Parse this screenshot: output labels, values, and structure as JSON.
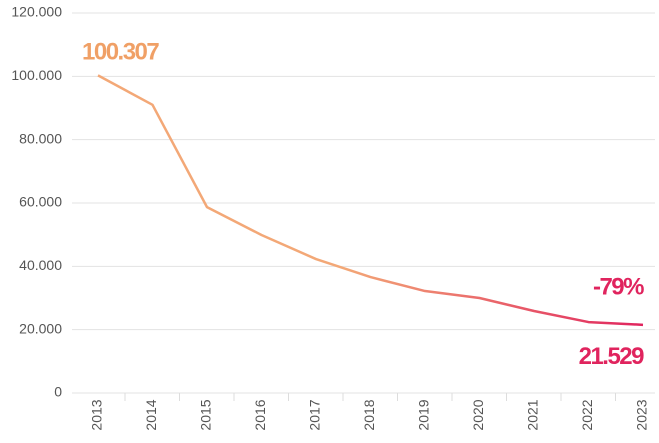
{
  "chart_data": {
    "type": "line",
    "categories": [
      "2013",
      "2014",
      "2015",
      "2016",
      "2017",
      "2018",
      "2019",
      "2020",
      "2021",
      "2022",
      "2023"
    ],
    "values": [
      100307,
      91000,
      58700,
      49900,
      42300,
      36600,
      32200,
      30000,
      25900,
      22400,
      21529
    ],
    "value_labels": [
      "100.307",
      null,
      null,
      null,
      null,
      null,
      null,
      null,
      null,
      null,
      "21.529"
    ],
    "value_label_colors": [
      "#f0a066",
      "#e0245e"
    ],
    "colors": [
      "#f3a877",
      "#e0245e"
    ],
    "annotations": [
      {
        "text": "-79%",
        "color": "#e0245e"
      }
    ],
    "ylim": [
      0,
      120000
    ],
    "yticks": [
      0,
      {
        "value": 20000,
        "label": "20.000"
      },
      {
        "value": 40000,
        "label": "40.000"
      },
      {
        "value": 60000,
        "label": "60.000"
      },
      {
        "value": 80000,
        "label": "80.000"
      },
      {
        "value": 100000,
        "label": "100.000"
      },
      {
        "value": 120000,
        "label": "120.000"
      }
    ],
    "grid": true
  }
}
